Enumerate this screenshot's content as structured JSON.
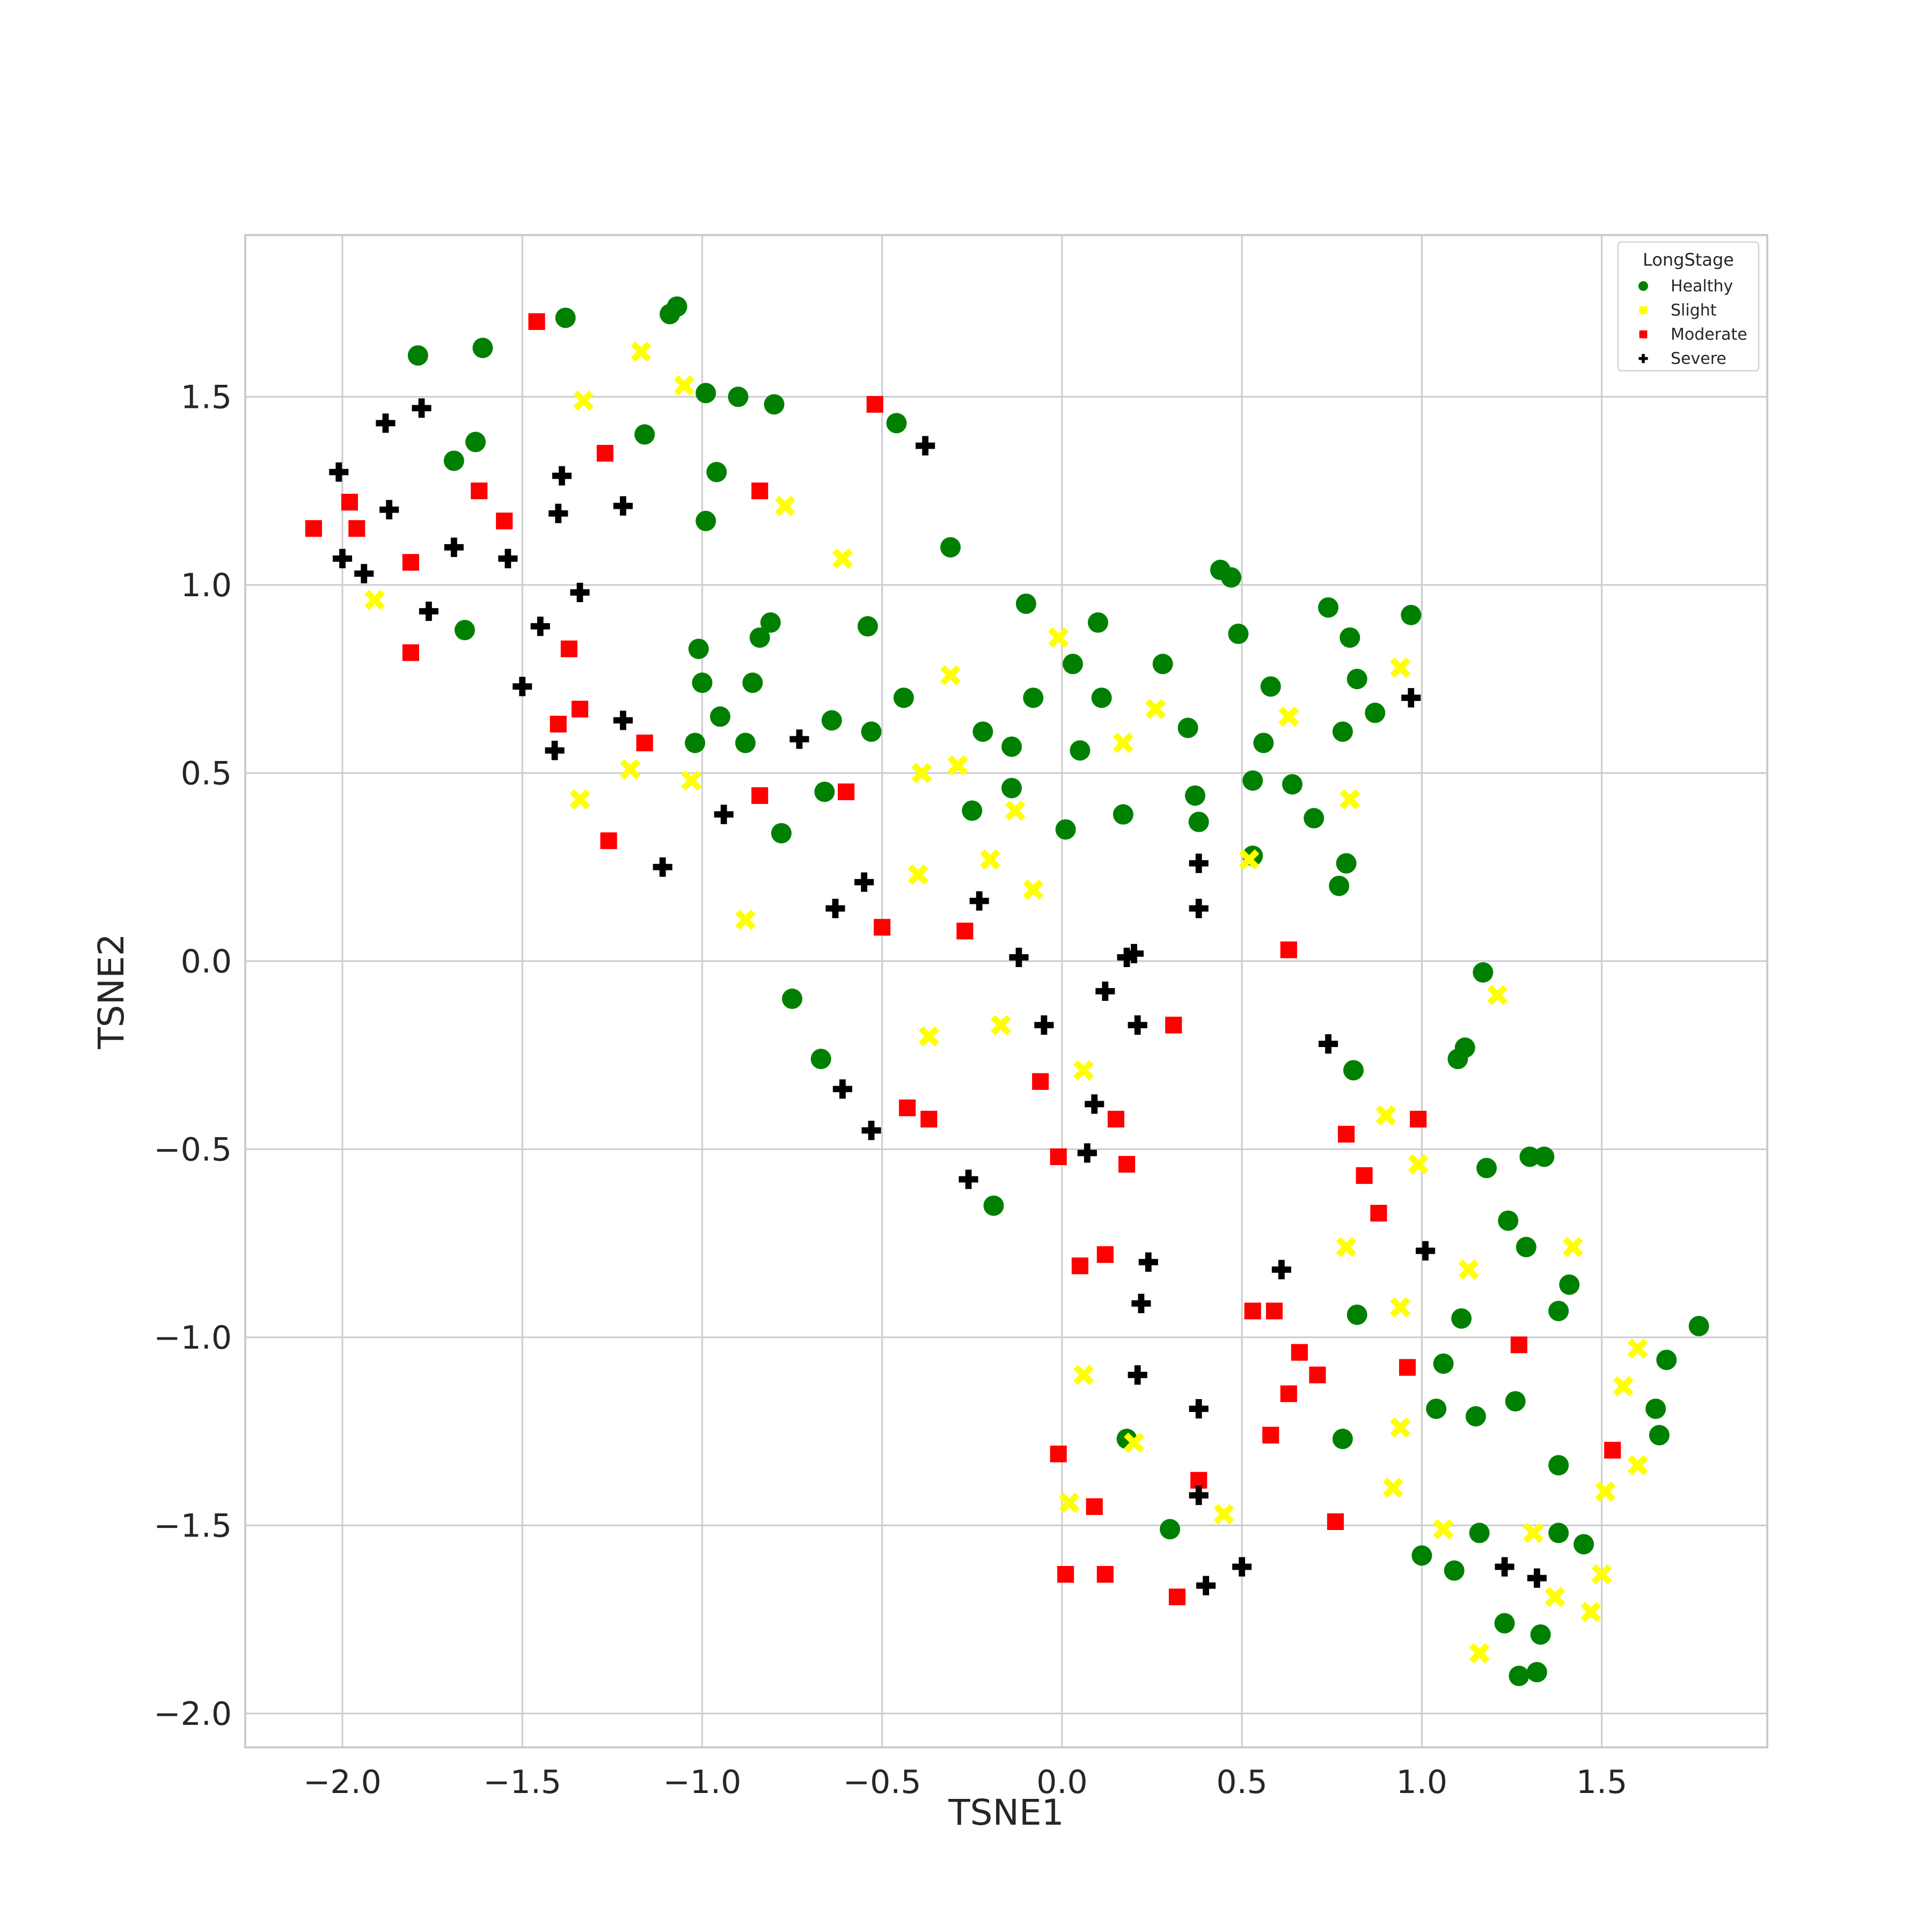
{
  "chart_data": {
    "type": "scatter",
    "title": "",
    "xlabel": "TSNE1",
    "ylabel": "TSNE2",
    "xlim": [
      -2.27,
      1.96
    ],
    "ylim": [
      -2.09,
      1.93
    ],
    "xticks": [
      -2.0,
      -1.5,
      -1.0,
      -0.5,
      0.0,
      0.5,
      1.0,
      1.5
    ],
    "xtick_labels": [
      "−2.0",
      "−1.5",
      "−1.0",
      "−0.5",
      "0.0",
      "0.5",
      "1.0",
      "1.5"
    ],
    "yticks": [
      1.5,
      1.0,
      0.5,
      0.0,
      -0.5,
      -1.0,
      -1.5,
      -2.0
    ],
    "ytick_labels": [
      "1.5",
      "1.0",
      "0.5",
      "0.0",
      "−0.5",
      "−1.0",
      "−1.5",
      "−2.0"
    ],
    "grid": true,
    "legend": {
      "title": "LongStage",
      "placement": "top-right"
    },
    "series": [
      {
        "name": "Healthy",
        "color": "#008000",
        "marker": "circle",
        "points": [
          [
            -1.79,
            1.61
          ],
          [
            -1.61,
            1.63
          ],
          [
            -1.38,
            1.71
          ],
          [
            -1.09,
            1.72
          ],
          [
            -1.07,
            1.74
          ],
          [
            -1.69,
            1.33
          ],
          [
            -1.63,
            1.38
          ],
          [
            -1.16,
            1.4
          ],
          [
            -0.99,
            1.51
          ],
          [
            -0.9,
            1.5
          ],
          [
            -0.8,
            1.48
          ],
          [
            -0.96,
            1.3
          ],
          [
            -0.99,
            1.17
          ],
          [
            -1.66,
            0.88
          ],
          [
            -1.01,
            0.83
          ],
          [
            -0.81,
            0.9
          ],
          [
            -0.84,
            0.86
          ],
          [
            -1.0,
            0.74
          ],
          [
            -0.95,
            0.65
          ],
          [
            -0.86,
            0.74
          ],
          [
            -1.02,
            0.58
          ],
          [
            -0.88,
            0.58
          ],
          [
            -0.64,
            0.64
          ],
          [
            -0.53,
            0.61
          ],
          [
            -0.54,
            0.89
          ],
          [
            -0.44,
            0.7
          ],
          [
            -0.46,
            1.43
          ],
          [
            -0.31,
            1.1
          ],
          [
            -0.66,
            0.45
          ],
          [
            -0.78,
            0.34
          ],
          [
            -0.22,
            0.61
          ],
          [
            -0.14,
            0.57
          ],
          [
            -0.1,
            0.95
          ],
          [
            -0.08,
            0.7
          ],
          [
            -0.14,
            0.46
          ],
          [
            -0.25,
            0.4
          ],
          [
            0.03,
            0.79
          ],
          [
            0.05,
            0.56
          ],
          [
            0.1,
            0.9
          ],
          [
            0.11,
            0.7
          ],
          [
            0.01,
            0.35
          ],
          [
            0.17,
            0.39
          ],
          [
            0.28,
            0.79
          ],
          [
            0.35,
            0.62
          ],
          [
            0.37,
            0.44
          ],
          [
            0.38,
            0.37
          ],
          [
            0.44,
            1.04
          ],
          [
            0.47,
            1.02
          ],
          [
            0.49,
            0.87
          ],
          [
            0.53,
            0.48
          ],
          [
            0.53,
            0.28
          ],
          [
            0.56,
            0.58
          ],
          [
            0.58,
            0.73
          ],
          [
            0.64,
            0.47
          ],
          [
            0.7,
            0.38
          ],
          [
            0.74,
            0.94
          ],
          [
            0.78,
            0.61
          ],
          [
            0.8,
            0.86
          ],
          [
            0.82,
            0.75
          ],
          [
            0.87,
            0.66
          ],
          [
            0.97,
            0.92
          ],
          [
            0.77,
            0.2
          ],
          [
            0.79,
            0.26
          ],
          [
            -0.75,
            -0.1
          ],
          [
            -0.67,
            -0.26
          ],
          [
            -0.19,
            -0.65
          ],
          [
            1.17,
            -0.03
          ],
          [
            1.12,
            -0.23
          ],
          [
            1.1,
            -0.26
          ],
          [
            0.81,
            -0.29
          ],
          [
            1.18,
            -0.55
          ],
          [
            1.3,
            -0.52
          ],
          [
            1.34,
            -0.52
          ],
          [
            1.24,
            -0.69
          ],
          [
            1.29,
            -0.76
          ],
          [
            1.41,
            -0.86
          ],
          [
            1.38,
            -0.93
          ],
          [
            1.77,
            -0.97
          ],
          [
            0.82,
            -0.94
          ],
          [
            1.11,
            -0.95
          ],
          [
            1.06,
            -1.07
          ],
          [
            1.68,
            -1.06
          ],
          [
            1.04,
            -1.19
          ],
          [
            1.15,
            -1.21
          ],
          [
            1.26,
            -1.17
          ],
          [
            1.65,
            -1.19
          ],
          [
            1.66,
            -1.26
          ],
          [
            0.78,
            -1.27
          ],
          [
            0.18,
            -1.27
          ],
          [
            1.38,
            -1.34
          ],
          [
            0.3,
            -1.51
          ],
          [
            1.16,
            -1.52
          ],
          [
            1.38,
            -1.52
          ],
          [
            1.45,
            -1.55
          ],
          [
            1.0,
            -1.58
          ],
          [
            1.09,
            -1.62
          ],
          [
            1.23,
            -1.76
          ],
          [
            1.33,
            -1.79
          ],
          [
            1.27,
            -1.9
          ],
          [
            1.32,
            -1.89
          ]
        ]
      },
      {
        "name": "Slight",
        "color": "#ffff00",
        "marker": "x",
        "points": [
          [
            -1.17,
            1.62
          ],
          [
            -1.05,
            1.53
          ],
          [
            -1.33,
            1.49
          ],
          [
            -0.77,
            1.21
          ],
          [
            -0.61,
            1.07
          ],
          [
            -1.91,
            0.96
          ],
          [
            -0.31,
            0.76
          ],
          [
            -0.01,
            0.86
          ],
          [
            0.94,
            0.78
          ],
          [
            0.26,
            0.67
          ],
          [
            0.63,
            0.65
          ],
          [
            -0.39,
            0.5
          ],
          [
            -0.29,
            0.52
          ],
          [
            -1.03,
            0.48
          ],
          [
            -1.2,
            0.51
          ],
          [
            0.17,
            0.58
          ],
          [
            -0.13,
            0.4
          ],
          [
            -1.34,
            0.43
          ],
          [
            0.8,
            0.43
          ],
          [
            -0.4,
            0.23
          ],
          [
            -0.88,
            0.11
          ],
          [
            -0.2,
            0.27
          ],
          [
            -0.08,
            0.19
          ],
          [
            0.52,
            0.27
          ],
          [
            1.21,
            -0.09
          ],
          [
            -0.37,
            -0.2
          ],
          [
            -0.17,
            -0.17
          ],
          [
            0.06,
            -0.29
          ],
          [
            0.9,
            -0.41
          ],
          [
            0.99,
            -0.54
          ],
          [
            0.79,
            -0.76
          ],
          [
            1.13,
            -0.82
          ],
          [
            1.42,
            -0.76
          ],
          [
            0.94,
            -0.92
          ],
          [
            0.06,
            -1.1
          ],
          [
            0.94,
            -1.24
          ],
          [
            1.6,
            -1.03
          ],
          [
            1.56,
            -1.13
          ],
          [
            1.6,
            -1.34
          ],
          [
            1.51,
            -1.41
          ],
          [
            0.2,
            -1.28
          ],
          [
            0.92,
            -1.4
          ],
          [
            0.02,
            -1.44
          ],
          [
            0.45,
            -1.47
          ],
          [
            1.06,
            -1.51
          ],
          [
            1.31,
            -1.52
          ],
          [
            1.37,
            -1.69
          ],
          [
            1.5,
            -1.63
          ],
          [
            1.47,
            -1.73
          ],
          [
            1.16,
            -1.84
          ]
        ]
      },
      {
        "name": "Moderate",
        "color": "#ff0000",
        "marker": "square",
        "points": [
          [
            -1.46,
            1.7
          ],
          [
            -2.08,
            1.15
          ],
          [
            -1.98,
            1.22
          ],
          [
            -1.96,
            1.15
          ],
          [
            -1.62,
            1.25
          ],
          [
            -1.55,
            1.17
          ],
          [
            -1.81,
            1.06
          ],
          [
            -1.27,
            1.35
          ],
          [
            -0.84,
            1.25
          ],
          [
            -0.52,
            1.48
          ],
          [
            -1.81,
            0.82
          ],
          [
            -1.37,
            0.83
          ],
          [
            -1.4,
            0.63
          ],
          [
            -1.34,
            0.67
          ],
          [
            -1.16,
            0.58
          ],
          [
            -0.84,
            0.44
          ],
          [
            -0.6,
            0.45
          ],
          [
            -1.26,
            0.32
          ],
          [
            -0.5,
            0.09
          ],
          [
            -0.27,
            0.08
          ],
          [
            0.31,
            -0.17
          ],
          [
            0.63,
            0.03
          ],
          [
            -0.06,
            -0.32
          ],
          [
            -0.43,
            -0.39
          ],
          [
            -0.37,
            -0.42
          ],
          [
            0.15,
            -0.42
          ],
          [
            -0.01,
            -0.52
          ],
          [
            0.18,
            -0.54
          ],
          [
            0.99,
            -0.42
          ],
          [
            0.79,
            -0.46
          ],
          [
            0.84,
            -0.57
          ],
          [
            0.88,
            -0.67
          ],
          [
            0.05,
            -0.81
          ],
          [
            0.12,
            -0.78
          ],
          [
            0.53,
            -0.93
          ],
          [
            0.59,
            -0.93
          ],
          [
            0.66,
            -1.04
          ],
          [
            0.71,
            -1.1
          ],
          [
            0.63,
            -1.15
          ],
          [
            0.96,
            -1.08
          ],
          [
            1.27,
            -1.02
          ],
          [
            0.58,
            -1.26
          ],
          [
            -0.01,
            -1.31
          ],
          [
            0.38,
            -1.38
          ],
          [
            0.09,
            -1.45
          ],
          [
            0.76,
            -1.49
          ],
          [
            1.53,
            -1.3
          ],
          [
            0.01,
            -1.63
          ],
          [
            0.12,
            -1.63
          ],
          [
            0.32,
            -1.69
          ]
        ]
      },
      {
        "name": "Severe",
        "color": "#000000",
        "marker": "plus",
        "points": [
          [
            -1.78,
            1.47
          ],
          [
            -1.88,
            1.43
          ],
          [
            -2.01,
            1.3
          ],
          [
            -1.87,
            1.2
          ],
          [
            -1.39,
            1.29
          ],
          [
            -1.4,
            1.19
          ],
          [
            -1.22,
            1.21
          ],
          [
            -0.38,
            1.37
          ],
          [
            -1.69,
            1.1
          ],
          [
            -1.54,
            1.07
          ],
          [
            -2.0,
            1.07
          ],
          [
            -1.94,
            1.03
          ],
          [
            -1.34,
            0.98
          ],
          [
            -1.76,
            0.93
          ],
          [
            -1.45,
            0.89
          ],
          [
            -1.5,
            0.73
          ],
          [
            -1.22,
            0.64
          ],
          [
            -1.41,
            0.56
          ],
          [
            -0.73,
            0.59
          ],
          [
            -0.94,
            0.39
          ],
          [
            -1.11,
            0.25
          ],
          [
            -0.55,
            0.21
          ],
          [
            -0.63,
            0.14
          ],
          [
            -0.23,
            0.16
          ],
          [
            -0.12,
            0.01
          ],
          [
            0.38,
            0.26
          ],
          [
            0.38,
            0.14
          ],
          [
            0.97,
            0.7
          ],
          [
            0.18,
            0.01
          ],
          [
            0.2,
            0.02
          ],
          [
            0.12,
            -0.08
          ],
          [
            0.21,
            -0.17
          ],
          [
            -0.05,
            -0.17
          ],
          [
            0.74,
            -0.22
          ],
          [
            -0.61,
            -0.34
          ],
          [
            -0.53,
            -0.45
          ],
          [
            0.09,
            -0.38
          ],
          [
            0.07,
            -0.51
          ],
          [
            -0.26,
            -0.58
          ],
          [
            0.24,
            -0.8
          ],
          [
            0.61,
            -0.82
          ],
          [
            1.01,
            -0.77
          ],
          [
            0.22,
            -0.91
          ],
          [
            0.21,
            -1.1
          ],
          [
            0.38,
            -1.19
          ],
          [
            0.38,
            -1.42
          ],
          [
            0.5,
            -1.61
          ],
          [
            0.4,
            -1.66
          ],
          [
            1.23,
            -1.61
          ],
          [
            1.32,
            -1.64
          ]
        ]
      }
    ]
  }
}
